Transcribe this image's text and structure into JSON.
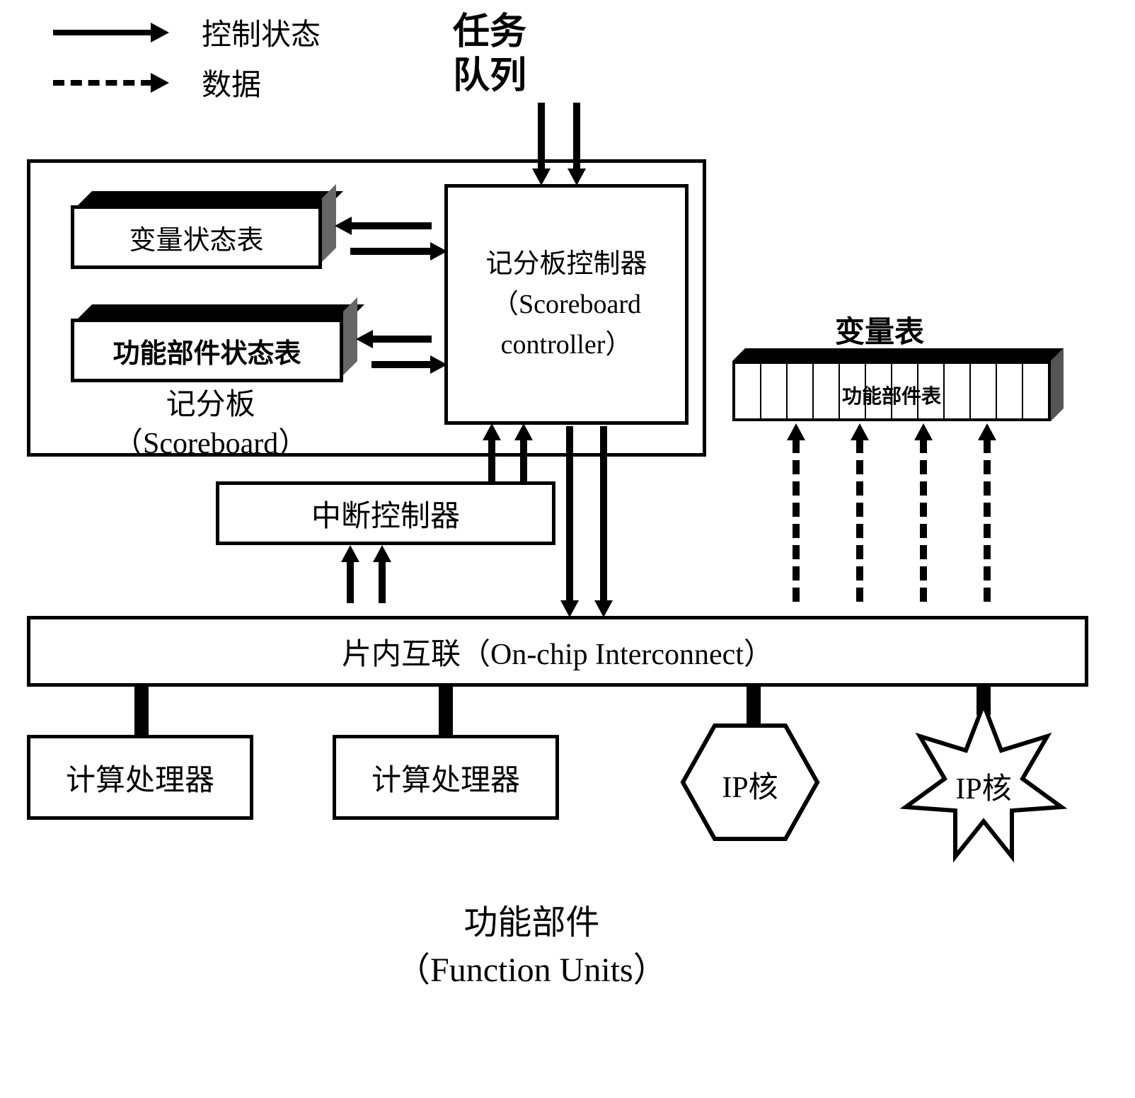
{
  "legend": {
    "solid_label": "控制状态",
    "dashed_label": "数据"
  },
  "title_top": "任务\n队列",
  "scoreboard": {
    "var_state_table": "变量状态表",
    "func_state_table": "功能部件状态表",
    "label": "记分板\n（Scoreboard）",
    "controller": "记分板控制器\n（Scoreboard controller）"
  },
  "var_table_title": "变量表",
  "func_table_label": "功能部件表",
  "interrupt_controller": "中断控制器",
  "interconnect": "片内互联（On-chip Interconnect）",
  "function_units": {
    "proc1": "计算处理器",
    "proc2": "计算处理器",
    "ip1": "IP核",
    "ip2": "IP核",
    "label": "功能部件\n（Function Units）"
  },
  "styling": {
    "border_color": "#000000",
    "background_color": "#ffffff",
    "border_width": 5,
    "font_size_main": 42,
    "font_size_title": 52,
    "font_size_small": 28,
    "arrow_width": 10,
    "dashed_width": 10
  }
}
